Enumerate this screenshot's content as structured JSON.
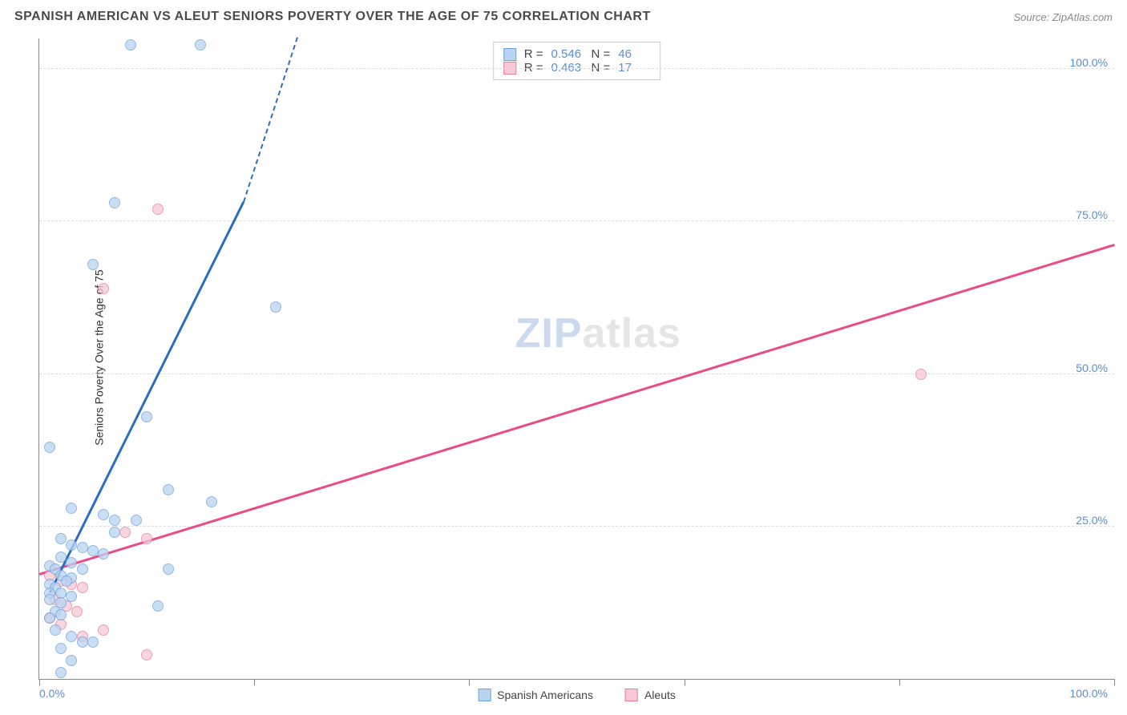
{
  "header": {
    "title": "SPANISH AMERICAN VS ALEUT SENIORS POVERTY OVER THE AGE OF 75 CORRELATION CHART",
    "source": "Source: ZipAtlas.com"
  },
  "ylabel": "Seniors Poverty Over the Age of 75",
  "watermark_zip": "ZIP",
  "watermark_atlas": "atlas",
  "axes": {
    "xlim": [
      0,
      100
    ],
    "ylim": [
      0,
      105
    ],
    "x_min_label": "0.0%",
    "x_max_label": "100.0%",
    "y_ticks": [
      25,
      50,
      75,
      100
    ],
    "y_tick_labels": [
      "25.0%",
      "50.0%",
      "75.0%",
      "100.0%"
    ],
    "x_tick_positions": [
      0,
      20,
      40,
      60,
      80,
      100
    ],
    "grid_color": "#dddddd"
  },
  "series": {
    "spanish": {
      "label": "Spanish Americans",
      "fill": "#b9d4f0",
      "stroke": "#6fa1dc",
      "line_color": "#2d6cc0",
      "opacity": 0.75,
      "radius": 7,
      "R_label": "R =",
      "R": "0.546",
      "N_label": "N =",
      "N": "46",
      "trend": {
        "x1": 1,
        "y1": 14,
        "x2": 19,
        "y2": 78,
        "dashed_to_x": 24,
        "dashed_to_y": 105
      },
      "points": [
        [
          8.5,
          104
        ],
        [
          15,
          104
        ],
        [
          7,
          78
        ],
        [
          5,
          68
        ],
        [
          22,
          61
        ],
        [
          10,
          43
        ],
        [
          12,
          31
        ],
        [
          16,
          29
        ],
        [
          1,
          38
        ],
        [
          3,
          28
        ],
        [
          6,
          27
        ],
        [
          7,
          26
        ],
        [
          9,
          26
        ],
        [
          7,
          24
        ],
        [
          2,
          23
        ],
        [
          3,
          22
        ],
        [
          4,
          21.5
        ],
        [
          5,
          21
        ],
        [
          6,
          20.5
        ],
        [
          2,
          20
        ],
        [
          3,
          19
        ],
        [
          1,
          18.5
        ],
        [
          1.5,
          18
        ],
        [
          4,
          18
        ],
        [
          12,
          18
        ],
        [
          2,
          17
        ],
        [
          3,
          16.5
        ],
        [
          2.5,
          16
        ],
        [
          1,
          15.5
        ],
        [
          1.5,
          15
        ],
        [
          1,
          14
        ],
        [
          2,
          14
        ],
        [
          3,
          13.5
        ],
        [
          1,
          13
        ],
        [
          2,
          12.5
        ],
        [
          11,
          12
        ],
        [
          1.5,
          11
        ],
        [
          2,
          10.5
        ],
        [
          1,
          10
        ],
        [
          1.5,
          8
        ],
        [
          3,
          7
        ],
        [
          4,
          6
        ],
        [
          2,
          5
        ],
        [
          5,
          6
        ],
        [
          3,
          3
        ],
        [
          2,
          1
        ]
      ]
    },
    "aleut": {
      "label": "Aleuts",
      "fill": "#f5c9d5",
      "stroke": "#e77ba0",
      "line_color": "#e94b87",
      "opacity": 0.75,
      "radius": 7,
      "R_label": "R =",
      "R": "0.463",
      "N_label": "N =",
      "N": "17",
      "trend": {
        "x1": 0,
        "y1": 17,
        "x2": 100,
        "y2": 71
      },
      "points": [
        [
          11,
          77
        ],
        [
          6,
          64
        ],
        [
          82,
          50
        ],
        [
          8,
          24
        ],
        [
          10,
          23
        ],
        [
          1,
          17
        ],
        [
          2,
          16
        ],
        [
          3,
          15.5
        ],
        [
          4,
          15
        ],
        [
          1.5,
          13
        ],
        [
          2.5,
          12
        ],
        [
          3.5,
          11
        ],
        [
          1,
          10
        ],
        [
          2,
          9
        ],
        [
          6,
          8
        ],
        [
          4,
          7
        ],
        [
          10,
          4
        ]
      ]
    }
  },
  "legend_bottom": [
    {
      "key": "spanish"
    },
    {
      "key": "aleut"
    }
  ]
}
